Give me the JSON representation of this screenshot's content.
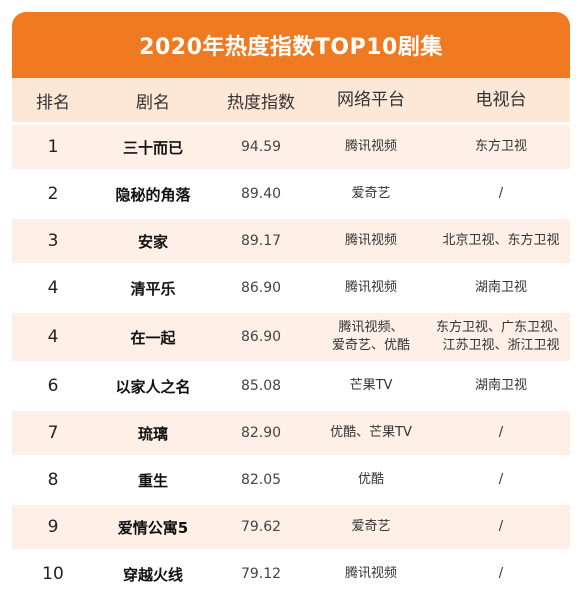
{
  "title": "2020年热度指数TOP10剧集",
  "columns": [
    "排名",
    "剧名",
    "热度指数",
    "网络平台",
    "电视台"
  ],
  "rows": [
    {
      "rank": "1",
      "name": "三十而已",
      "score": "94.59",
      "platform": "腾讯视频",
      "tv": "东方卫视"
    },
    {
      "rank": "2",
      "name": "隐秘的角落",
      "score": "89.40",
      "platform": "爱奇艺",
      "tv": "/"
    },
    {
      "rank": "3",
      "name": "安家",
      "score": "89.17",
      "platform": "腾讯视频",
      "tv": "北京卫视、东方卫视"
    },
    {
      "rank": "4",
      "name": "清平乐",
      "score": "86.90",
      "platform": "腾讯视频",
      "tv": "湖南卫视"
    },
    {
      "rank": "4",
      "name": "在一起",
      "score": "86.90",
      "platform_lines": [
        "腾讯视频、",
        "爱奇艺、优酷"
      ],
      "tv_lines": [
        "东方卫视、广东卫视、",
        "江苏卫视、浙江卫视"
      ]
    },
    {
      "rank": "6",
      "name": "以家人之名",
      "score": "85.08",
      "platform": "芒果TV",
      "tv": "湖南卫视"
    },
    {
      "rank": "7",
      "name": "琉璃",
      "score": "82.90",
      "platform": "优酷、芒果TV",
      "tv": "/"
    },
    {
      "rank": "8",
      "name": "重生",
      "score": "82.05",
      "platform": "优酷",
      "tv": "/"
    },
    {
      "rank": "9",
      "name": "爱情公寓5",
      "score": "79.62",
      "platform": "爱奇艺",
      "tv": "/"
    },
    {
      "rank": "10",
      "name": "穿越火线",
      "score": "79.12",
      "platform": "腾讯视频",
      "tv": "/"
    }
  ],
  "colors": {
    "accent": "#f07a22",
    "header_bg": "#fde7d6",
    "stripe": "#fef0e6"
  }
}
